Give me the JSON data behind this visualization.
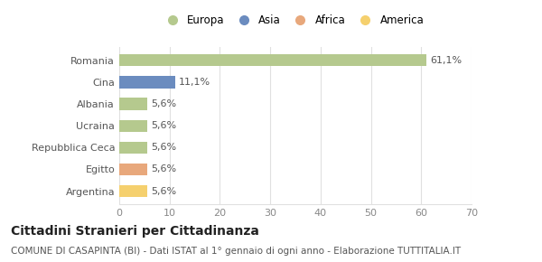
{
  "categories": [
    "Romania",
    "Cina",
    "Albania",
    "Ucraina",
    "Repubblica Ceca",
    "Egitto",
    "Argentina"
  ],
  "values": [
    61.1,
    11.1,
    5.6,
    5.6,
    5.6,
    5.6,
    5.6
  ],
  "labels": [
    "61,1%",
    "11,1%",
    "5,6%",
    "5,6%",
    "5,6%",
    "5,6%",
    "5,6%"
  ],
  "colors": [
    "#b5c98e",
    "#6b8cbf",
    "#b5c98e",
    "#b5c98e",
    "#b5c98e",
    "#e8a87c",
    "#f5d06e"
  ],
  "legend_labels": [
    "Europa",
    "Asia",
    "Africa",
    "America"
  ],
  "legend_colors": [
    "#b5c98e",
    "#6b8cbf",
    "#e8a87c",
    "#f5d06e"
  ],
  "xlim": [
    0,
    70
  ],
  "xticks": [
    0,
    10,
    20,
    30,
    40,
    50,
    60,
    70
  ],
  "title": "Cittadini Stranieri per Cittadinanza",
  "subtitle": "COMUNE DI CASAPINTA (BI) - Dati ISTAT al 1° gennaio di ogni anno - Elaborazione TUTTITALIA.IT",
  "bg_color": "#ffffff",
  "grid_color": "#e0e0e0",
  "title_fontsize": 10,
  "subtitle_fontsize": 7.5,
  "label_fontsize": 8,
  "tick_fontsize": 8,
  "ytick_fontsize": 8
}
